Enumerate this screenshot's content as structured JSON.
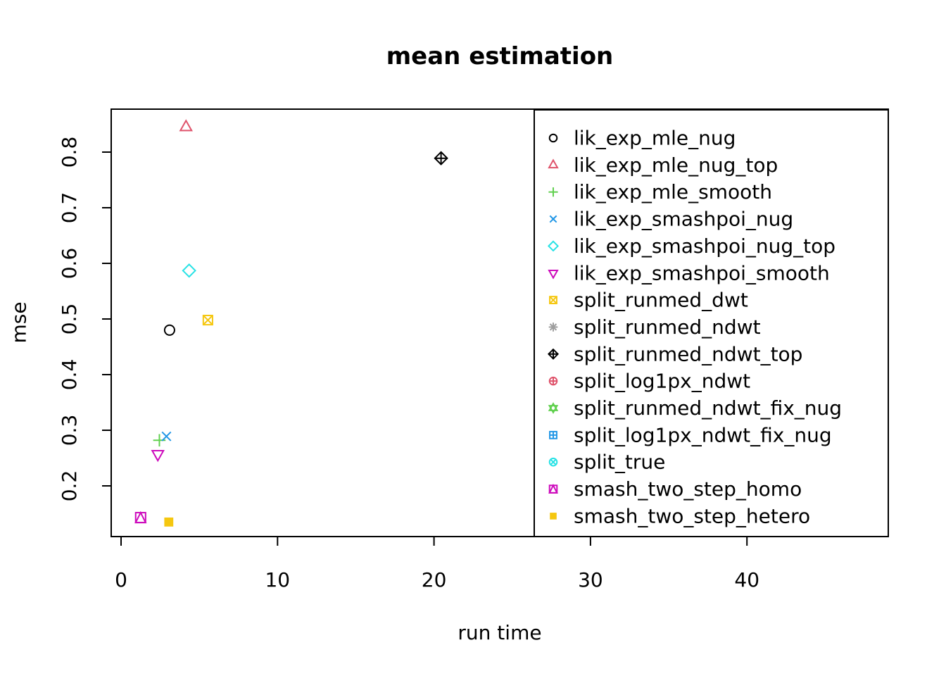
{
  "title": "mean estimation",
  "axes": {
    "xlabel": "run time",
    "ylabel": "mse"
  },
  "chart_data": {
    "type": "scatter",
    "title": "mean estimation",
    "xlabel": "run time",
    "ylabel": "mse",
    "xlim": [
      -0.65,
      49.0
    ],
    "ylim": [
      0.109,
      0.877
    ],
    "x_ticks": [
      0,
      10,
      20,
      30,
      40
    ],
    "y_ticks": [
      0.2,
      0.3,
      0.4,
      0.5,
      0.6,
      0.7,
      0.8
    ],
    "grid": false,
    "legend_position": "right-inside-box",
    "series": [
      {
        "name": "lik_exp_mle_nug",
        "pch": 1,
        "marker": "circle-open",
        "color": "#000000",
        "x": 3.1,
        "y": 0.48,
        "visible": true
      },
      {
        "name": "lik_exp_mle_nug_top",
        "pch": 2,
        "marker": "triangle-up-open",
        "color": "#DF536B",
        "x": 4.15,
        "y": 0.845,
        "visible": true
      },
      {
        "name": "lik_exp_mle_smooth",
        "pch": 3,
        "marker": "plus",
        "color": "#61D04F",
        "x": 2.45,
        "y": 0.282,
        "visible": true
      },
      {
        "name": "lik_exp_smashpoi_nug",
        "pch": 4,
        "marker": "x",
        "color": "#2297E6",
        "x": 2.9,
        "y": 0.289,
        "visible": true
      },
      {
        "name": "lik_exp_smashpoi_nug_top",
        "pch": 5,
        "marker": "diamond-open",
        "color": "#28E2E5",
        "x": 4.35,
        "y": 0.587,
        "visible": true
      },
      {
        "name": "lik_exp_smashpoi_smooth",
        "pch": 6,
        "marker": "triangle-down-open",
        "color": "#CD0BBC",
        "x": 2.35,
        "y": 0.257,
        "visible": true
      },
      {
        "name": "split_runmed_dwt",
        "pch": 7,
        "marker": "square-x",
        "color": "#F5C710",
        "x": 5.55,
        "y": 0.498,
        "visible": true
      },
      {
        "name": "split_runmed_ndwt",
        "pch": 8,
        "marker": "asterisk",
        "color": "#9E9E9E",
        "x": null,
        "y": null,
        "visible": false
      },
      {
        "name": "split_runmed_ndwt_top",
        "pch": 9,
        "marker": "diamond-plus",
        "color": "#000000",
        "x": 20.45,
        "y": 0.789,
        "visible": true
      },
      {
        "name": "split_log1px_ndwt",
        "pch": 10,
        "marker": "circle-plus",
        "color": "#DF536B",
        "x": null,
        "y": null,
        "visible": false
      },
      {
        "name": "split_runmed_ndwt_fix_nug",
        "pch": 11,
        "marker": "triangles-up-down",
        "color": "#61D04F",
        "x": null,
        "y": null,
        "visible": false
      },
      {
        "name": "split_log1px_ndwt_fix_nug",
        "pch": 12,
        "marker": "square-plus",
        "color": "#2297E6",
        "x": null,
        "y": null,
        "visible": false
      },
      {
        "name": "split_true",
        "pch": 13,
        "marker": "circle-x",
        "color": "#28E2E5",
        "x": null,
        "y": null,
        "visible": false
      },
      {
        "name": "smash_two_step_homo",
        "pch": 14,
        "marker": "square-triangle",
        "color": "#CD0BBC",
        "x": 1.25,
        "y": 0.143,
        "visible": true
      },
      {
        "name": "smash_two_step_hetero",
        "pch": 15,
        "marker": "square-filled",
        "color": "#F5C710",
        "x": 3.05,
        "y": 0.135,
        "visible": true
      }
    ]
  }
}
